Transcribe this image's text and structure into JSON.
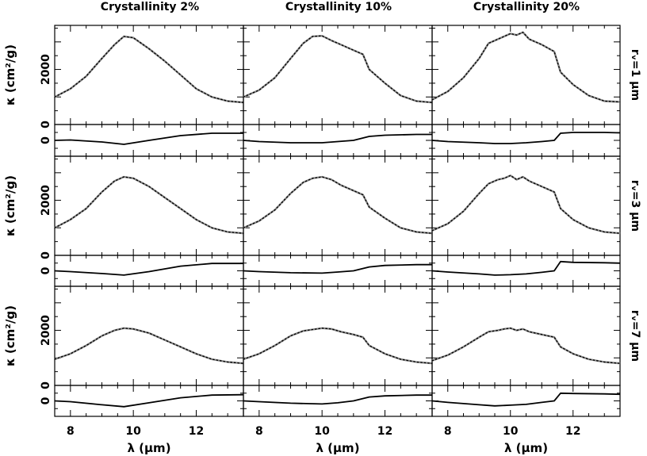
{
  "chart_data": {
    "type": "line",
    "column_titles": [
      "Crystallinity 2%",
      "Crystallinity 10%",
      "Crystallinity 20%"
    ],
    "row_labels": [
      "rᵥ=1 μm",
      "rᵥ=3 μm",
      "rᵥ=7 μm"
    ],
    "xlabel": "λ (μm)",
    "ylabel": "κ (cm²/g)",
    "xlim": [
      7.5,
      13.5
    ],
    "x_ticks": [
      8,
      10,
      12
    ],
    "main_ticks": [
      0,
      2000
    ],
    "residual_ticks": [
      0
    ],
    "rows": [
      {
        "label": "rᵥ=1 μm",
        "ylim": [
          0,
          3600
        ],
        "panels": [
          {
            "crystallinity": "2%",
            "x": [
              7.5,
              8,
              8.5,
              9,
              9.4,
              9.7,
              10,
              10.5,
              11,
              11.5,
              12,
              12.5,
              13,
              13.5
            ],
            "y": [
              1000,
              1300,
              1750,
              2400,
              2900,
              3200,
              3150,
              2750,
              2300,
              1800,
              1300,
              1000,
              850,
              800
            ]
          },
          {
            "crystallinity": "10%",
            "x": [
              7.5,
              8,
              8.5,
              9,
              9.4,
              9.7,
              10,
              10.3,
              10.6,
              11,
              11.3,
              11.5,
              12,
              12.5,
              13,
              13.5
            ],
            "y": [
              1000,
              1250,
              1700,
              2400,
              2950,
              3200,
              3220,
              3050,
              2900,
              2700,
              2550,
              2000,
              1500,
              1050,
              850,
              800
            ]
          },
          {
            "crystallinity": "20%",
            "x": [
              7.5,
              8,
              8.5,
              9,
              9.3,
              9.6,
              9.8,
              10,
              10.2,
              10.4,
              10.6,
              11,
              11.4,
              11.6,
              12,
              12.5,
              13,
              13.5
            ],
            "y": [
              900,
              1200,
              1700,
              2400,
              2950,
              3100,
              3200,
              3300,
              3250,
              3350,
              3100,
              2900,
              2650,
              1900,
              1450,
              1050,
              850,
              820
            ]
          }
        ]
      },
      {
        "label": "rᵥ=3 μm",
        "ylim": [
          0,
          3600
        ],
        "panels": [
          {
            "crystallinity": "2%",
            "x": [
              7.5,
              8,
              8.5,
              9,
              9.4,
              9.7,
              10,
              10.5,
              11,
              11.5,
              12,
              12.5,
              13,
              13.5
            ],
            "y": [
              1000,
              1300,
              1700,
              2300,
              2700,
              2850,
              2800,
              2500,
              2100,
              1700,
              1300,
              1000,
              850,
              800
            ]
          },
          {
            "crystallinity": "10%",
            "x": [
              7.5,
              8,
              8.5,
              9,
              9.4,
              9.7,
              10,
              10.3,
              10.6,
              11,
              11.3,
              11.5,
              12,
              12.5,
              13,
              13.5
            ],
            "y": [
              1000,
              1250,
              1650,
              2250,
              2650,
              2800,
              2850,
              2750,
              2550,
              2350,
              2200,
              1750,
              1350,
              1000,
              850,
              800
            ]
          },
          {
            "crystallinity": "20%",
            "x": [
              7.5,
              8,
              8.5,
              9,
              9.3,
              9.6,
              9.8,
              10,
              10.2,
              10.4,
              10.6,
              11,
              11.4,
              11.6,
              12,
              12.5,
              13,
              13.5
            ],
            "y": [
              900,
              1150,
              1600,
              2250,
              2600,
              2750,
              2800,
              2900,
              2750,
              2850,
              2700,
              2500,
              2300,
              1700,
              1300,
              1000,
              850,
              800
            ]
          }
        ]
      },
      {
        "label": "rᵥ=7 μm",
        "ylim": [
          0,
          3600
        ],
        "panels": [
          {
            "crystallinity": "2%",
            "x": [
              7.5,
              8,
              8.5,
              9,
              9.4,
              9.7,
              10,
              10.5,
              11,
              11.5,
              12,
              12.5,
              13,
              13.5
            ],
            "y": [
              950,
              1150,
              1450,
              1800,
              2000,
              2080,
              2050,
              1900,
              1650,
              1400,
              1150,
              950,
              850,
              800
            ]
          },
          {
            "crystallinity": "10%",
            "x": [
              7.5,
              8,
              8.5,
              9,
              9.4,
              9.7,
              10,
              10.3,
              10.6,
              11,
              11.3,
              11.5,
              12,
              12.5,
              13,
              13.5
            ],
            "y": [
              950,
              1150,
              1450,
              1800,
              1980,
              2030,
              2080,
              2050,
              1950,
              1850,
              1750,
              1450,
              1150,
              950,
              850,
              800
            ]
          },
          {
            "crystallinity": "20%",
            "x": [
              7.5,
              8,
              8.5,
              9,
              9.3,
              9.6,
              9.8,
              10,
              10.2,
              10.4,
              10.6,
              11,
              11.4,
              11.6,
              12,
              12.5,
              13,
              13.5
            ],
            "y": [
              900,
              1100,
              1400,
              1750,
              1950,
              2000,
              2050,
              2080,
              2000,
              2050,
              1950,
              1850,
              1750,
              1400,
              1150,
              950,
              850,
              800
            ]
          }
        ]
      }
    ],
    "residual_ylim": [
      -400,
      400
    ],
    "residual_panels": [
      [
        {
          "x": [
            7.5,
            8,
            9,
            9.7,
            10.5,
            11.5,
            12.5,
            13.5
          ],
          "y": [
            0,
            10,
            -40,
            -100,
            0,
            120,
            180,
            180
          ]
        },
        {
          "x": [
            7.5,
            8,
            9,
            10,
            10.5,
            11,
            11.5,
            12,
            13,
            13.5
          ],
          "y": [
            0,
            -30,
            -60,
            -60,
            -30,
            0,
            100,
            130,
            150,
            150
          ]
        },
        {
          "x": [
            7.5,
            8,
            9,
            9.5,
            10,
            10.5,
            11,
            11.4,
            11.6,
            12,
            13,
            13.5
          ],
          "y": [
            0,
            -30,
            -60,
            -80,
            -80,
            -60,
            -30,
            0,
            180,
            200,
            200,
            190
          ]
        }
      ],
      [
        {
          "x": [
            7.5,
            8,
            9,
            9.7,
            10.5,
            11.5,
            12.5,
            13.5
          ],
          "y": [
            0,
            -20,
            -70,
            -110,
            -20,
            120,
            190,
            190
          ]
        },
        {
          "x": [
            7.5,
            8,
            9,
            10,
            10.5,
            11,
            11.5,
            12,
            13,
            13.5
          ],
          "y": [
            0,
            -20,
            -50,
            -60,
            -30,
            0,
            100,
            140,
            160,
            160
          ]
        },
        {
          "x": [
            7.5,
            8,
            9,
            9.5,
            10,
            10.5,
            11,
            11.4,
            11.6,
            12,
            13,
            13.5
          ],
          "y": [
            0,
            -30,
            -80,
            -110,
            -100,
            -80,
            -40,
            0,
            240,
            220,
            210,
            200
          ]
        }
      ],
      [
        {
          "x": [
            7.5,
            8,
            9,
            9.7,
            10.5,
            11.5,
            12.5,
            13.5
          ],
          "y": [
            0,
            -20,
            -100,
            -150,
            -50,
            80,
            150,
            160
          ]
        },
        {
          "x": [
            7.5,
            8,
            9,
            10,
            10.5,
            11,
            11.5,
            12,
            13,
            13.5
          ],
          "y": [
            0,
            -20,
            -60,
            -80,
            -50,
            0,
            100,
            130,
            150,
            150
          ]
        },
        {
          "x": [
            7.5,
            8,
            9,
            9.5,
            10,
            10.5,
            11,
            11.4,
            11.6,
            12,
            13,
            13.5
          ],
          "y": [
            0,
            -40,
            -100,
            -130,
            -110,
            -90,
            -40,
            0,
            200,
            190,
            180,
            170
          ]
        }
      ]
    ]
  }
}
